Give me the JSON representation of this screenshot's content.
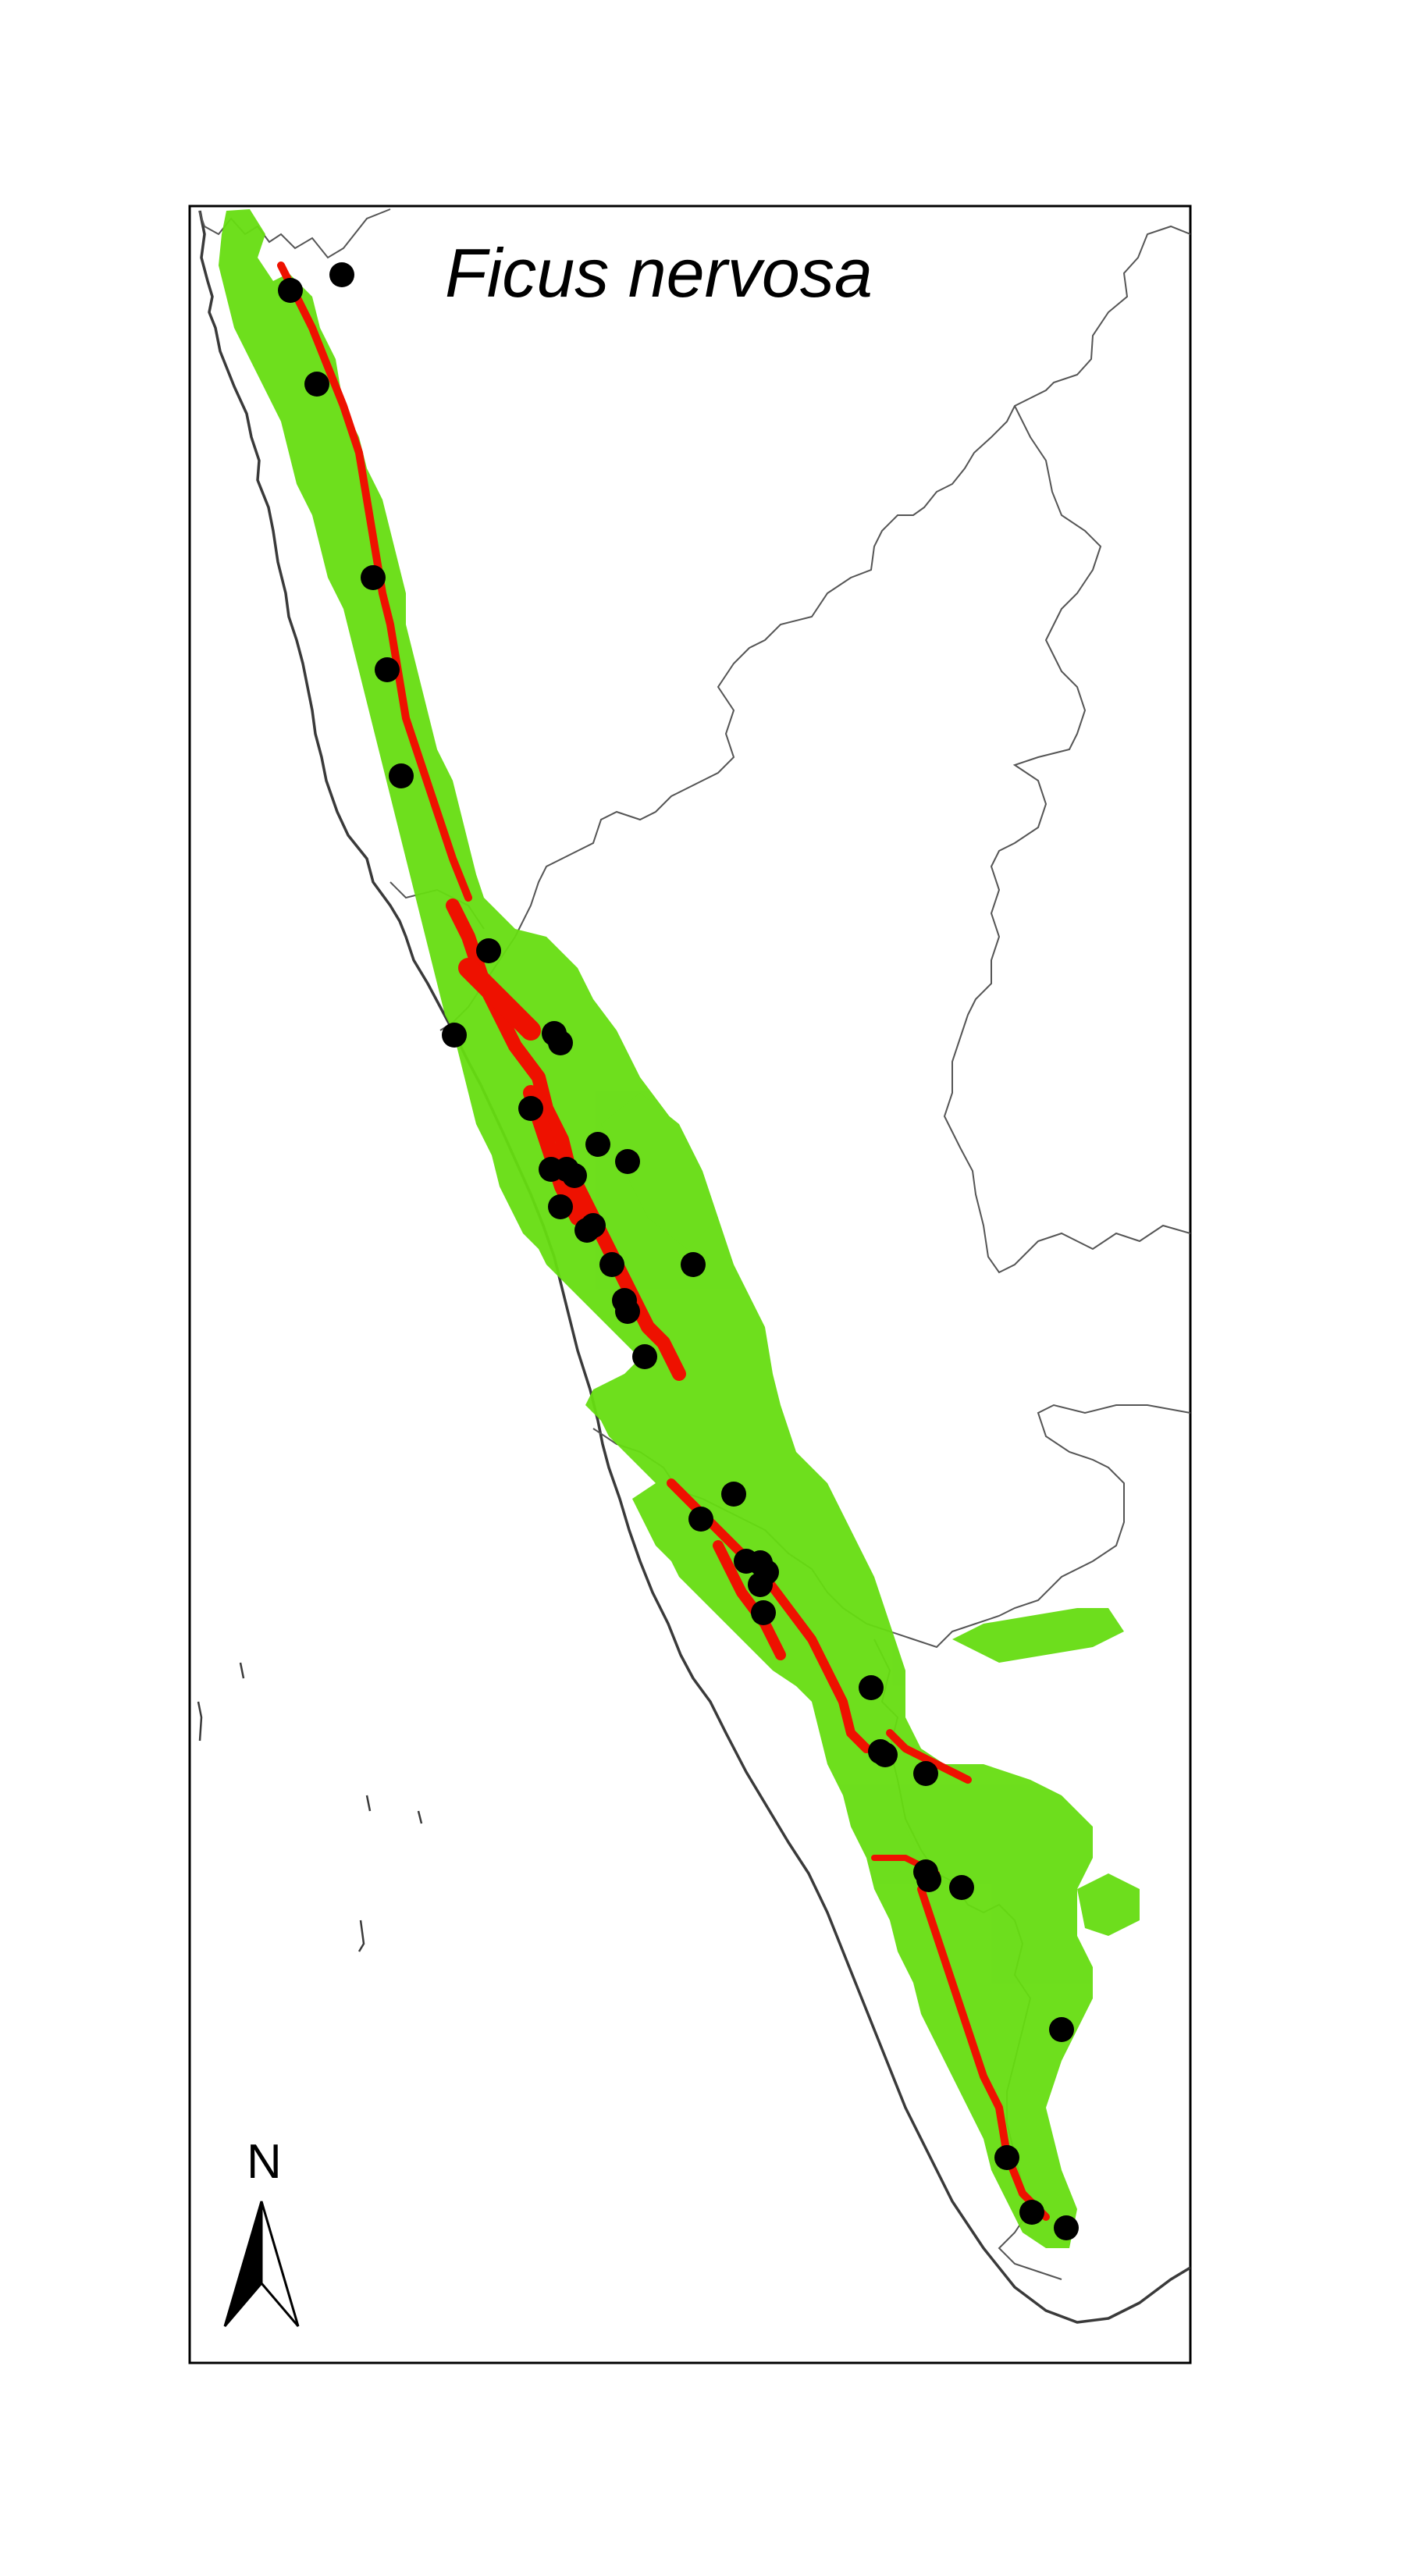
{
  "map": {
    "title": "Ficus nervosa",
    "north_label": "N",
    "colors": {
      "background": "#ffffff",
      "frame": "#000000",
      "coastline": "#3a3a3a",
      "state_boundary": "#555555",
      "suitability_moderate": "#66dd11",
      "suitability_high": "#ee1100",
      "occurrence_point": "#000000"
    },
    "legend": {
      "north_arrow_icon": "north-arrow-icon"
    },
    "occurrence_count": 44
  }
}
